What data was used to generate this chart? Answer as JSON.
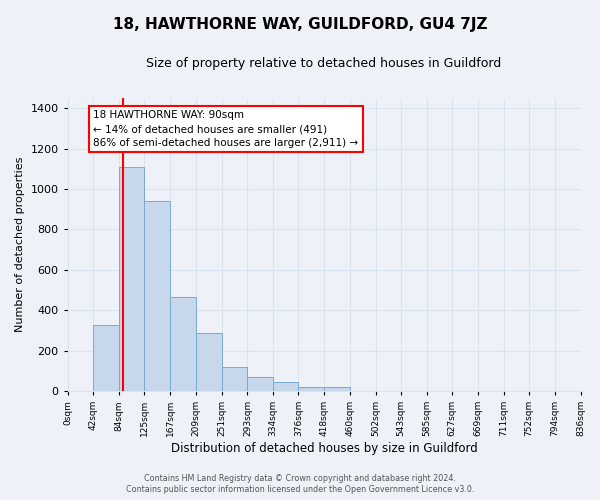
{
  "title": "18, HAWTHORNE WAY, GUILDFORD, GU4 7JZ",
  "subtitle": "Size of property relative to detached houses in Guildford",
  "xlabel": "Distribution of detached houses by size in Guildford",
  "ylabel": "Number of detached properties",
  "bar_values": [
    0,
    325,
    1110,
    940,
    465,
    285,
    120,
    70,
    45,
    20,
    20,
    0,
    0,
    0,
    0,
    0,
    0,
    0,
    0,
    0
  ],
  "bin_edges": [
    0,
    42,
    84,
    125,
    167,
    209,
    251,
    293,
    334,
    376,
    418,
    460,
    502,
    543,
    585,
    627,
    669,
    711,
    752,
    794,
    836
  ],
  "tick_labels": [
    "0sqm",
    "42sqm",
    "84sqm",
    "125sqm",
    "167sqm",
    "209sqm",
    "251sqm",
    "293sqm",
    "334sqm",
    "376sqm",
    "418sqm",
    "460sqm",
    "502sqm",
    "543sqm",
    "585sqm",
    "627sqm",
    "669sqm",
    "711sqm",
    "752sqm",
    "794sqm",
    "836sqm"
  ],
  "bar_color": "#c8d8ec",
  "bar_edge_color": "#7aaad0",
  "vline_x": 90,
  "vline_color": "red",
  "annotation_title": "18 HAWTHORNE WAY: 90sqm",
  "annotation_line1": "← 14% of detached houses are smaller (491)",
  "annotation_line2": "86% of semi-detached houses are larger (2,911) →",
  "annotation_box_facecolor": "white",
  "annotation_box_edgecolor": "red",
  "ylim": [
    0,
    1450
  ],
  "yticks": [
    0,
    200,
    400,
    600,
    800,
    1000,
    1200,
    1400
  ],
  "grid_color": "#d8e4f0",
  "bg_color": "#eef2f8",
  "title_fontsize": 11,
  "subtitle_fontsize": 9,
  "footer1": "Contains HM Land Registry data © Crown copyright and database right 2024.",
  "footer2": "Contains public sector information licensed under the Open Government Licence v3.0."
}
